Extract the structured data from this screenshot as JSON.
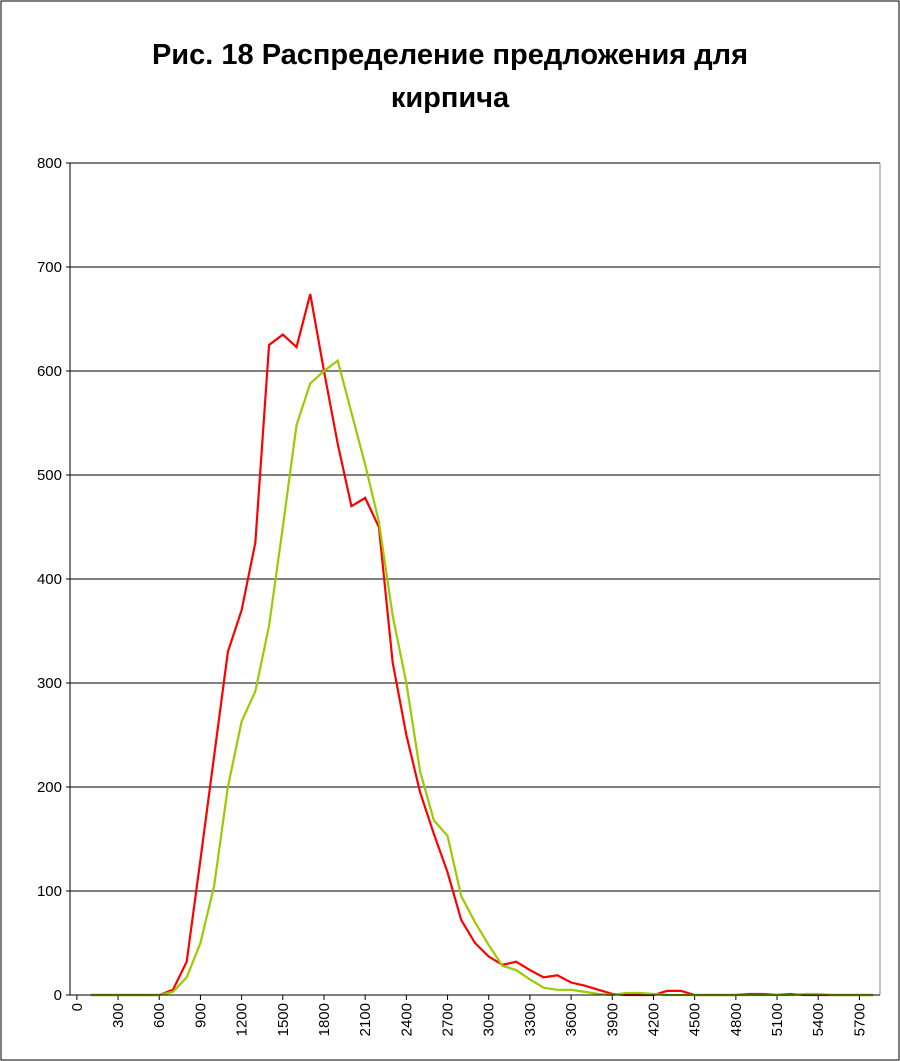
{
  "chart_data": {
    "type": "line",
    "title": [
      "Рис. 18 Распределение предложения для",
      "кирпича"
    ],
    "x": [
      100,
      200,
      300,
      400,
      500,
      600,
      700,
      800,
      900,
      1000,
      1100,
      1200,
      1300,
      1400,
      1500,
      1600,
      1700,
      1800,
      1900,
      2000,
      2100,
      2200,
      2300,
      2400,
      2500,
      2600,
      2700,
      2800,
      2900,
      3000,
      3100,
      3200,
      3300,
      3400,
      3500,
      3600,
      3700,
      3800,
      3900,
      4000,
      4100,
      4200,
      4300,
      4400,
      4500,
      4600,
      4700,
      4800,
      4900,
      5000,
      5100,
      5200,
      5300,
      5400,
      5500,
      5600,
      5700,
      5800
    ],
    "series": [
      {
        "color": "#ff0000",
        "values": [
          0,
          0,
          0,
          0,
          0,
          0,
          5,
          32,
          130,
          230,
          330,
          370,
          435,
          625,
          635,
          623,
          674,
          600,
          530,
          470,
          478,
          450,
          320,
          250,
          195,
          155,
          118,
          72,
          50,
          37,
          29,
          32,
          24,
          17,
          19,
          12,
          9,
          5,
          1,
          0,
          0,
          0,
          4,
          4,
          0,
          0,
          0,
          0,
          1,
          1,
          0,
          1,
          0,
          0,
          0,
          0,
          0,
          0
        ]
      },
      {
        "color": "#99cc00",
        "values": [
          0,
          0,
          0,
          0,
          0,
          0,
          3,
          17,
          50,
          105,
          200,
          263,
          292,
          355,
          450,
          548,
          588,
          600,
          610,
          560,
          510,
          455,
          365,
          300,
          215,
          168,
          153,
          95,
          70,
          48,
          28,
          24,
          15,
          7,
          5,
          5,
          3,
          1,
          0,
          2,
          2,
          1,
          0,
          0,
          0,
          0,
          0,
          0,
          0,
          0,
          0,
          0,
          1,
          1,
          0,
          0,
          0,
          0
        ]
      }
    ],
    "xlim": [
      -50,
      5850
    ],
    "xticks": [
      0,
      300,
      600,
      900,
      1200,
      1500,
      1800,
      2100,
      2400,
      2700,
      3000,
      3300,
      3600,
      3900,
      4200,
      4500,
      4800,
      5100,
      5400,
      5700
    ],
    "ylim": [
      0,
      800
    ],
    "yticks": [
      0,
      100,
      200,
      300,
      400,
      500,
      600,
      700,
      800
    ],
    "grid": true
  }
}
